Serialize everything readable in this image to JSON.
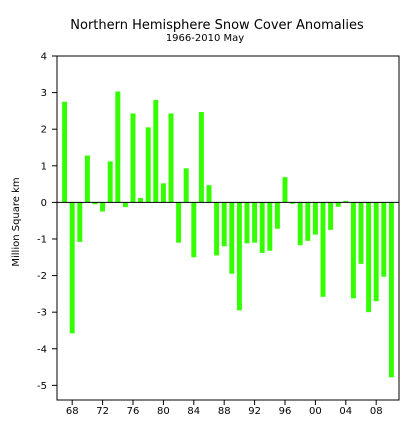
{
  "chart_data": {
    "type": "bar",
    "title": "Northern Hemisphere Snow Cover Anomalies",
    "subtitle": "1966-2010 May",
    "xlabel": "",
    "ylabel": "Million Square km",
    "ylim": [
      -5.4,
      4
    ],
    "yticks": [
      4,
      3,
      2,
      1,
      0,
      -1,
      -2,
      -3,
      -4,
      -5
    ],
    "xlim": [
      1966,
      2011
    ],
    "xticks": [
      {
        "year": 1968,
        "label": "68"
      },
      {
        "year": 1972,
        "label": "72"
      },
      {
        "year": 1976,
        "label": "76"
      },
      {
        "year": 1980,
        "label": "80"
      },
      {
        "year": 1984,
        "label": "84"
      },
      {
        "year": 1988,
        "label": "88"
      },
      {
        "year": 1992,
        "label": "92"
      },
      {
        "year": 1996,
        "label": "96"
      },
      {
        "year": 2000,
        "label": "00"
      },
      {
        "year": 2004,
        "label": "04"
      },
      {
        "year": 2008,
        "label": "08"
      }
    ],
    "bar_color": "#33ff00",
    "grid": false,
    "x": [
      1967,
      1968,
      1969,
      1970,
      1971,
      1972,
      1973,
      1974,
      1975,
      1976,
      1977,
      1978,
      1979,
      1980,
      1981,
      1982,
      1983,
      1984,
      1985,
      1986,
      1987,
      1988,
      1989,
      1990,
      1991,
      1992,
      1993,
      1994,
      1995,
      1996,
      1997,
      1998,
      1999,
      2000,
      2001,
      2002,
      2003,
      2004,
      2005,
      2006,
      2007,
      2008,
      2009,
      2010
    ],
    "values": [
      2.75,
      -3.58,
      -1.08,
      1.28,
      -0.05,
      -0.25,
      1.12,
      3.03,
      -0.13,
      2.43,
      0.12,
      2.05,
      2.8,
      0.52,
      2.43,
      -1.1,
      0.93,
      -1.5,
      2.47,
      0.47,
      -1.45,
      -1.2,
      -1.95,
      -2.95,
      -1.12,
      -1.1,
      -1.38,
      -1.32,
      -0.72,
      0.69,
      -0.04,
      -1.17,
      -1.05,
      -0.88,
      -2.58,
      -0.75,
      -0.12,
      0.04,
      -2.62,
      -1.68,
      -3.0,
      -2.7,
      -2.03,
      -4.78
    ]
  }
}
